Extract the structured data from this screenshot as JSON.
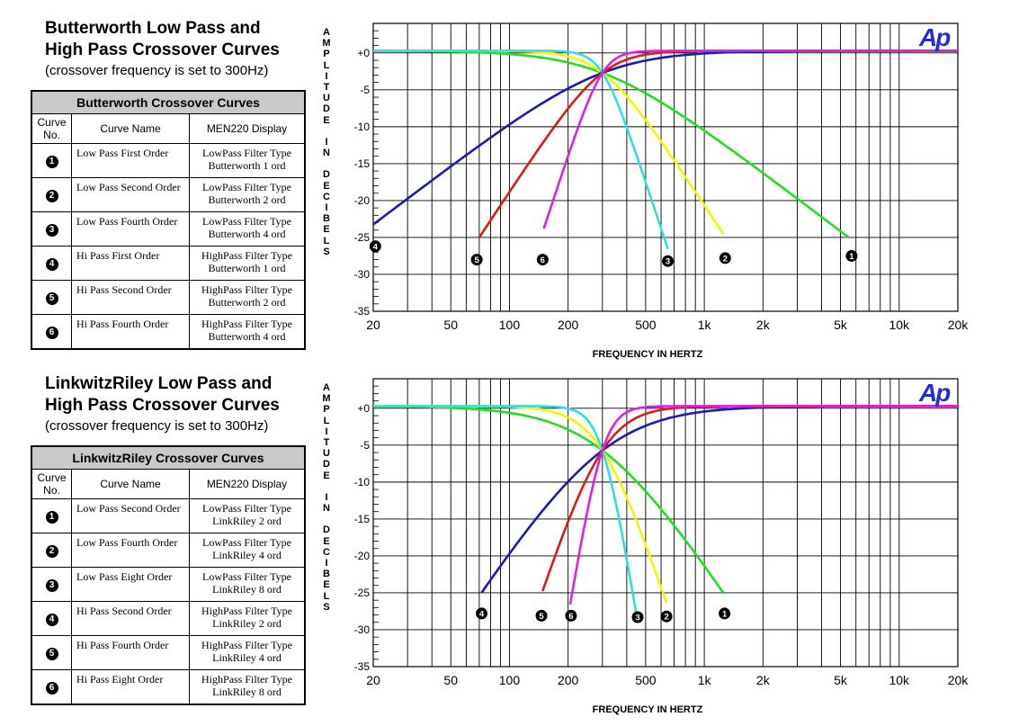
{
  "panels": [
    {
      "title_line1": "Butterworth Low  Pass and",
      "title_line2": "High Pass Crossover Curves",
      "subtitle": "(crossover frequency is set to 300Hz)",
      "table": {
        "caption": "Butterworth Crossover Curves",
        "col_no": [
          "Curve",
          "No."
        ],
        "col_name": "Curve Name",
        "col_display": "MEN220 Display",
        "rows": [
          {
            "no": "1",
            "name": "Low Pass First Order",
            "display1": "LowPass Filter Type",
            "display2": "Butterworth 1 ord"
          },
          {
            "no": "2",
            "name": "Low Pass Second Order",
            "display1": "LowPass Filter Type",
            "display2": "Butterworth 2 ord"
          },
          {
            "no": "3",
            "name": "Low Pass Fourth Order",
            "display1": "LowPass Filter Type",
            "display2": "Butterworth 4 ord"
          },
          {
            "no": "4",
            "name": "Hi Pass First Order",
            "display1": "HighPass Filter Type",
            "display2": "Butterworth 1 ord"
          },
          {
            "no": "5",
            "name": "Hi Pass Second Order",
            "display1": "HighPass Filter Type",
            "display2": "Butterworth 2 ord"
          },
          {
            "no": "6",
            "name": "Hi Pass Fourth Order",
            "display1": "HighPass Filter Type",
            "display2": "Butterworth 4 ord"
          }
        ]
      },
      "logo": "Ap"
    },
    {
      "title_line1": "LinkwitzRiley Low  Pass and",
      "title_line2": "High Pass Crossover Curves",
      "subtitle": "(crossover frequency is set to 300Hz)",
      "table": {
        "caption": "LinkwitzRiley Crossover Curves",
        "col_no": [
          "Curve",
          "No."
        ],
        "col_name": "Curve Name",
        "col_display": "MEN220 Display",
        "rows": [
          {
            "no": "1",
            "name": "Low Pass Second Order",
            "display1": "LowPass Filter Type",
            "display2": "LinkRiley 2 ord"
          },
          {
            "no": "2",
            "name": "Low Pass Fourth Order",
            "display1": "LowPass Filter Type",
            "display2": "LinkRiley 4 ord"
          },
          {
            "no": "3",
            "name": "Low Pass Eight Order",
            "display1": "LowPass Filter Type",
            "display2": "LinkRiley 8 ord"
          },
          {
            "no": "4",
            "name": "Hi Pass Second Order",
            "display1": "HighPass Filter Type",
            "display2": "LinkRiley 2 ord"
          },
          {
            "no": "5",
            "name": "Hi Pass Fourth Order",
            "display1": "HighPass Filter Type",
            "display2": "LinkRiley 4 ord"
          },
          {
            "no": "6",
            "name": "Hi Pass Eight Order",
            "display1": "HighPass Filter Type",
            "display2": "LinkRiley 8 ord"
          }
        ]
      },
      "logo": "Ap"
    }
  ],
  "chart_data": [
    {
      "type": "line",
      "x_scale": "log",
      "xlim": [
        20,
        20000
      ],
      "ylim": [
        -35,
        4
      ],
      "grid": true,
      "xlabel": "FREQUENCY IN HERTZ",
      "ylabel": "AMPLITUDE IN DECIBELS",
      "xticks": [
        20,
        50,
        100,
        200,
        500,
        1000,
        2000,
        5000,
        10000,
        20000
      ],
      "xtick_labels": [
        "20",
        "50",
        "100",
        "200",
        "500",
        "1k",
        "2k",
        "5k",
        "10k",
        "20k"
      ],
      "yticks": [
        0,
        -5,
        -10,
        -15,
        -20,
        -25,
        -30,
        -35
      ],
      "ytick_labels": [
        "+0",
        "-5",
        "-10",
        "-15",
        "-20",
        "-25",
        "-30",
        "-35"
      ],
      "crossover_hz": 300,
      "series": [
        {
          "label": "1",
          "kind": "lowpass",
          "order": 1,
          "color": "#22dd22",
          "x_min": 20,
          "x_max": 5500,
          "label_at": [
            5700,
            -27.5
          ]
        },
        {
          "label": "2",
          "kind": "lowpass",
          "order": 2,
          "color": "#f5f500",
          "x_min": 20,
          "x_max": 1250,
          "label_at": [
            1280,
            -27.8
          ]
        },
        {
          "label": "3",
          "kind": "lowpass",
          "order": 4,
          "color": "#33dddd",
          "x_min": 20,
          "x_max": 650,
          "label_at": [
            650,
            -28.2
          ]
        },
        {
          "label": "4",
          "kind": "highpass",
          "order": 1,
          "color": "#1a1ab8",
          "x_min": 20,
          "x_max": 20000,
          "label_at": [
            20.5,
            -26.2
          ]
        },
        {
          "label": "5",
          "kind": "highpass",
          "order": 2,
          "color": "#dd1a1a",
          "x_min": 70,
          "x_max": 20000,
          "label_at": [
            68,
            -28
          ]
        },
        {
          "label": "6",
          "kind": "highpass",
          "order": 4,
          "color": "#e020e0",
          "x_min": 150,
          "x_max": 20000,
          "label_at": [
            148,
            -28
          ]
        }
      ]
    },
    {
      "type": "line",
      "x_scale": "log",
      "xlim": [
        20,
        20000
      ],
      "ylim": [
        -35,
        4
      ],
      "grid": true,
      "xlabel": "FREQUENCY IN HERTZ",
      "ylabel": "AMPLITUDE IN DECIBELS",
      "xticks": [
        20,
        50,
        100,
        200,
        500,
        1000,
        2000,
        5000,
        10000,
        20000
      ],
      "xtick_labels": [
        "20",
        "50",
        "100",
        "200",
        "500",
        "1k",
        "2k",
        "5k",
        "10k",
        "20k"
      ],
      "yticks": [
        0,
        -5,
        -10,
        -15,
        -20,
        -25,
        -30,
        -35
      ],
      "ytick_labels": [
        "+0",
        "-5",
        "-10",
        "-15",
        "-20",
        "-25",
        "-30",
        "-35"
      ],
      "crossover_hz": 300,
      "series": [
        {
          "label": "1",
          "kind": "lowpass",
          "order": 2,
          "color": "#22dd22",
          "x_min": 20,
          "x_max": 1250,
          "label_at": [
            1270,
            -27.8
          ]
        },
        {
          "label": "2",
          "kind": "lowpass",
          "order": 4,
          "color": "#f5f500",
          "x_min": 20,
          "x_max": 640,
          "label_at": [
            640,
            -28.2
          ]
        },
        {
          "label": "3",
          "kind": "lowpass",
          "order": 8,
          "color": "#33dddd",
          "x_min": 20,
          "x_max": 450,
          "label_at": [
            455,
            -28.3
          ]
        },
        {
          "label": "4",
          "kind": "highpass",
          "order": 2,
          "color": "#1a1ab8",
          "x_min": 72,
          "x_max": 20000,
          "label_at": [
            72,
            -27.8
          ]
        },
        {
          "label": "5",
          "kind": "highpass",
          "order": 4,
          "color": "#dd1a1a",
          "x_min": 148,
          "x_max": 20000,
          "label_at": [
            146,
            -28.1
          ]
        },
        {
          "label": "6",
          "kind": "highpass",
          "order": 8,
          "color": "#e020e0",
          "x_min": 205,
          "x_max": 20000,
          "label_at": [
            207,
            -28.1
          ]
        }
      ]
    }
  ]
}
